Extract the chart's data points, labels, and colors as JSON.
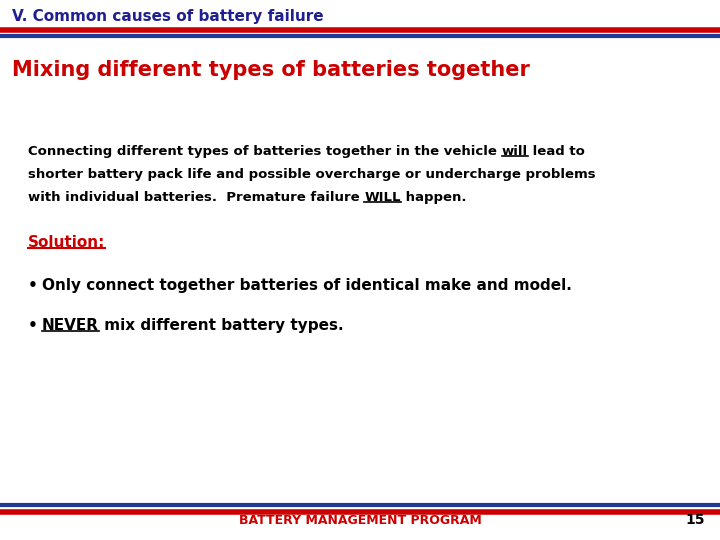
{
  "title": "V. Common causes of battery failure",
  "subtitle": "Mixing different types of batteries together",
  "line1_pre": "Connecting different types of batteries together in the vehicle ",
  "line1_ul": "will",
  "line1_post": " lead to",
  "line2": "shorter battery pack life and possible overcharge or undercharge problems",
  "line3_pre": "with individual batteries.  Premature failure ",
  "line3_ul": "WILL",
  "line3_post": " happen.",
  "solution_label": "Solution:",
  "bullet1": "Only connect together batteries of identical make and model.",
  "bullet2_ul": "NEVER",
  "bullet2_post": " mix different battery types.",
  "footer": "BATTERY MANAGEMENT PROGRAM",
  "page_number": "15",
  "bg_color": "#FFFFFF",
  "title_color": "#1F1F8F",
  "subtitle_color": "#CC0000",
  "body_color": "#000000",
  "solution_color": "#CC0000",
  "bullet_color": "#000000",
  "footer_color": "#CC0000",
  "header_red_color": "#CC0000",
  "header_blue_color": "#1F3A99",
  "footer_blue_color": "#1F3A99",
  "footer_red_color": "#CC0000",
  "title_fontsize": 11,
  "subtitle_fontsize": 15,
  "body_fontsize": 9.5,
  "solution_fontsize": 11,
  "bullet_fontsize": 11,
  "footer_fontsize": 9
}
